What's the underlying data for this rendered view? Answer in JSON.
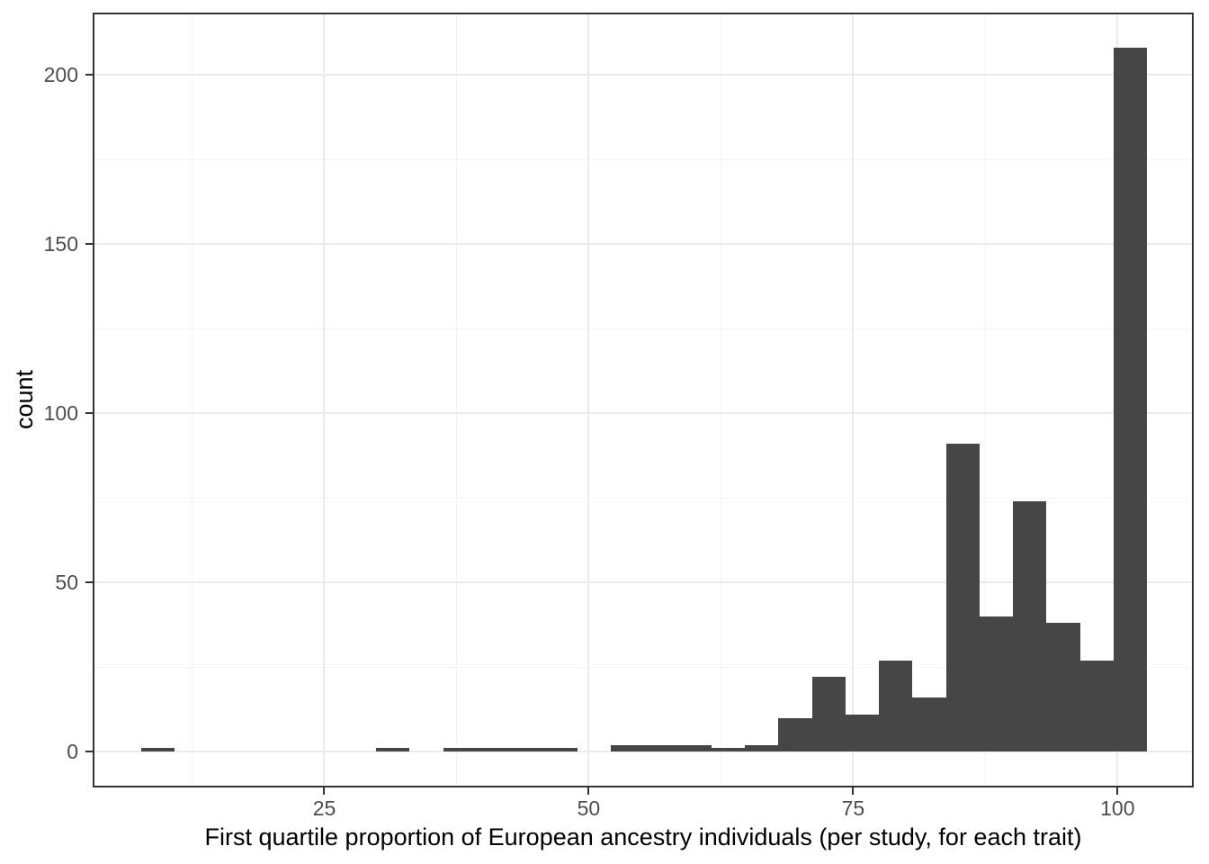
{
  "figure": {
    "background": "#ffffff"
  },
  "chart_data": {
    "type": "bar",
    "subtype": "histogram",
    "title": "",
    "xlabel": "First quartile proportion of European ancestry individuals (per study, for each trait)",
    "ylabel": "count",
    "bar_color": "#464646",
    "panel_border_color": "#333333",
    "grid_major_color": "#ebebeb",
    "grid_minor_color": "#f4f4f4",
    "tick_color": "#333333",
    "tick_label_color": "#4d4d4d",
    "axis_title_color": "#000000",
    "grid": "major and minor, light gray on white",
    "legend": "none",
    "xlim": [
      3.1,
      107.2
    ],
    "ylim": [
      -10.6,
      218.4
    ],
    "x_major_ticks": [
      25,
      50,
      75,
      100
    ],
    "x_minor_gridlines": [
      12.5,
      37.5,
      62.5,
      87.5
    ],
    "y_major_ticks": [
      0,
      50,
      100,
      150,
      200
    ],
    "y_minor_gridlines": [
      25,
      75,
      125,
      175
    ],
    "bins": {
      "first_edge": 7.7,
      "bin_width": 3.17,
      "counts": [
        1,
        0,
        0,
        0,
        0,
        0,
        0,
        1,
        0,
        1,
        1,
        1,
        1,
        0,
        2,
        2,
        2,
        1,
        2,
        10,
        22,
        11,
        27,
        16,
        91,
        40,
        74,
        38,
        27,
        208
      ]
    }
  }
}
